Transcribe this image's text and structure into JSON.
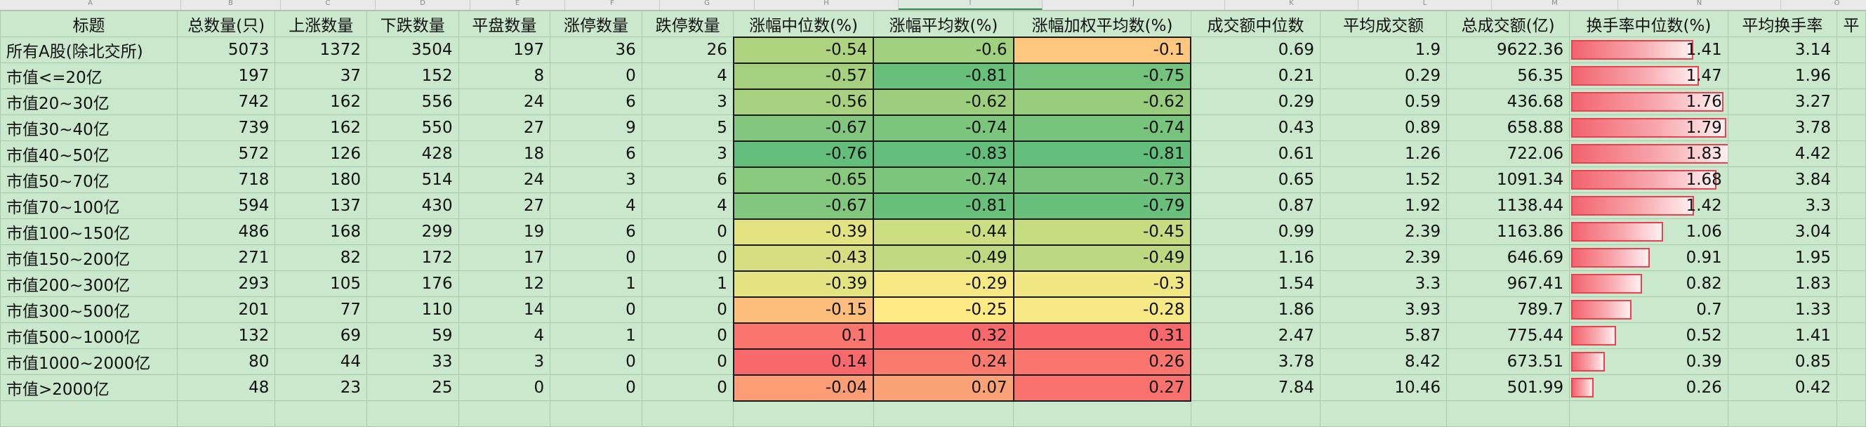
{
  "column_letters": [
    "A",
    "B",
    "C",
    "D",
    "E",
    "F",
    "G",
    "H",
    "I",
    "J",
    "K",
    "L",
    "M",
    "N",
    "O",
    "P"
  ],
  "headers": [
    "标题",
    "总数量(只)",
    "上涨数量",
    "下跌数量",
    "平盘数量",
    "涨停数量",
    "跌停数量",
    "涨幅中位数(%)",
    "涨幅平均数(%)",
    "涨幅加权平均数(%)",
    "成交额中位数",
    "平均成交额",
    "总成交额(亿)",
    "换手率中位数(%)",
    "平均换手率",
    "平"
  ],
  "rows": [
    {
      "title": "所有A股(除北交所)",
      "total": "5073",
      "up": "1372",
      "down": "3504",
      "flat": "197",
      "limit_up": "36",
      "limit_down": "26",
      "chg_median": "-0.54",
      "chg_mean": "-0.6",
      "chg_wmean": "-0.1",
      "amt_median": "0.69",
      "amt_mean": "1.9",
      "amt_total": "9622.36",
      "tr_median": "1.41",
      "tr_mean": "3.14"
    },
    {
      "title": "市值<=20亿",
      "total": "197",
      "up": "37",
      "down": "152",
      "flat": "8",
      "limit_up": "0",
      "limit_down": "4",
      "chg_median": "-0.57",
      "chg_mean": "-0.81",
      "chg_wmean": "-0.75",
      "amt_median": "0.21",
      "amt_mean": "0.29",
      "amt_total": "56.35",
      "tr_median": "1.47",
      "tr_mean": "1.96"
    },
    {
      "title": "市值20~30亿",
      "total": "742",
      "up": "162",
      "down": "556",
      "flat": "24",
      "limit_up": "6",
      "limit_down": "3",
      "chg_median": "-0.56",
      "chg_mean": "-0.62",
      "chg_wmean": "-0.62",
      "amt_median": "0.29",
      "amt_mean": "0.59",
      "amt_total": "436.68",
      "tr_median": "1.76",
      "tr_mean": "3.27"
    },
    {
      "title": "市值30~40亿",
      "total": "739",
      "up": "162",
      "down": "550",
      "flat": "27",
      "limit_up": "9",
      "limit_down": "5",
      "chg_median": "-0.67",
      "chg_mean": "-0.74",
      "chg_wmean": "-0.74",
      "amt_median": "0.43",
      "amt_mean": "0.89",
      "amt_total": "658.88",
      "tr_median": "1.79",
      "tr_mean": "3.78"
    },
    {
      "title": "市值40~50亿",
      "total": "572",
      "up": "126",
      "down": "428",
      "flat": "18",
      "limit_up": "6",
      "limit_down": "3",
      "chg_median": "-0.76",
      "chg_mean": "-0.83",
      "chg_wmean": "-0.81",
      "amt_median": "0.61",
      "amt_mean": "1.26",
      "amt_total": "722.06",
      "tr_median": "1.83",
      "tr_mean": "4.42"
    },
    {
      "title": "市值50~70亿",
      "total": "718",
      "up": "180",
      "down": "514",
      "flat": "24",
      "limit_up": "3",
      "limit_down": "6",
      "chg_median": "-0.65",
      "chg_mean": "-0.74",
      "chg_wmean": "-0.73",
      "amt_median": "0.65",
      "amt_mean": "1.52",
      "amt_total": "1091.34",
      "tr_median": "1.68",
      "tr_mean": "3.84"
    },
    {
      "title": "市值70~100亿",
      "total": "594",
      "up": "137",
      "down": "430",
      "flat": "27",
      "limit_up": "4",
      "limit_down": "4",
      "chg_median": "-0.67",
      "chg_mean": "-0.81",
      "chg_wmean": "-0.79",
      "amt_median": "0.87",
      "amt_mean": "1.92",
      "amt_total": "1138.44",
      "tr_median": "1.42",
      "tr_mean": "3.3"
    },
    {
      "title": "市值100~150亿",
      "total": "486",
      "up": "168",
      "down": "299",
      "flat": "19",
      "limit_up": "6",
      "limit_down": "0",
      "chg_median": "-0.39",
      "chg_mean": "-0.44",
      "chg_wmean": "-0.45",
      "amt_median": "0.99",
      "amt_mean": "2.39",
      "amt_total": "1163.86",
      "tr_median": "1.06",
      "tr_mean": "3.04"
    },
    {
      "title": "市值150~200亿",
      "total": "271",
      "up": "82",
      "down": "172",
      "flat": "17",
      "limit_up": "0",
      "limit_down": "0",
      "chg_median": "-0.43",
      "chg_mean": "-0.49",
      "chg_wmean": "-0.49",
      "amt_median": "1.16",
      "amt_mean": "2.39",
      "amt_total": "646.69",
      "tr_median": "0.91",
      "tr_mean": "1.95"
    },
    {
      "title": "市值200~300亿",
      "total": "293",
      "up": "105",
      "down": "176",
      "flat": "12",
      "limit_up": "1",
      "limit_down": "1",
      "chg_median": "-0.39",
      "chg_mean": "-0.29",
      "chg_wmean": "-0.3",
      "amt_median": "1.54",
      "amt_mean": "3.3",
      "amt_total": "967.41",
      "tr_median": "0.82",
      "tr_mean": "1.83"
    },
    {
      "title": "市值300~500亿",
      "total": "201",
      "up": "77",
      "down": "110",
      "flat": "14",
      "limit_up": "0",
      "limit_down": "0",
      "chg_median": "-0.15",
      "chg_mean": "-0.25",
      "chg_wmean": "-0.28",
      "amt_median": "1.86",
      "amt_mean": "3.93",
      "amt_total": "789.7",
      "tr_median": "0.7",
      "tr_mean": "1.33"
    },
    {
      "title": "市值500~1000亿",
      "total": "132",
      "up": "69",
      "down": "59",
      "flat": "4",
      "limit_up": "1",
      "limit_down": "0",
      "chg_median": "0.1",
      "chg_mean": "0.32",
      "chg_wmean": "0.31",
      "amt_median": "2.47",
      "amt_mean": "5.87",
      "amt_total": "775.44",
      "tr_median": "0.52",
      "tr_mean": "1.41"
    },
    {
      "title": "市值1000~2000亿",
      "total": "80",
      "up": "44",
      "down": "33",
      "flat": "3",
      "limit_up": "0",
      "limit_down": "0",
      "chg_median": "0.14",
      "chg_mean": "0.24",
      "chg_wmean": "0.26",
      "amt_median": "3.78",
      "amt_mean": "8.42",
      "amt_total": "673.51",
      "tr_median": "0.39",
      "tr_mean": "0.85"
    },
    {
      "title": "市值>2000亿",
      "total": "48",
      "up": "23",
      "down": "25",
      "flat": "0",
      "limit_up": "0",
      "limit_down": "0",
      "chg_median": "-0.04",
      "chg_mean": "0.07",
      "chg_wmean": "0.27",
      "amt_median": "7.84",
      "amt_mean": "10.46",
      "amt_total": "501.99",
      "tr_median": "0.26",
      "tr_mean": "0.42"
    }
  ],
  "colors": {
    "sheet_bg": "#c9e8cc",
    "scale_low": "#63be7b",
    "scale_mid": "#ffeb84",
    "scale_high": "#f8696b",
    "databar": "#f2636e"
  }
}
